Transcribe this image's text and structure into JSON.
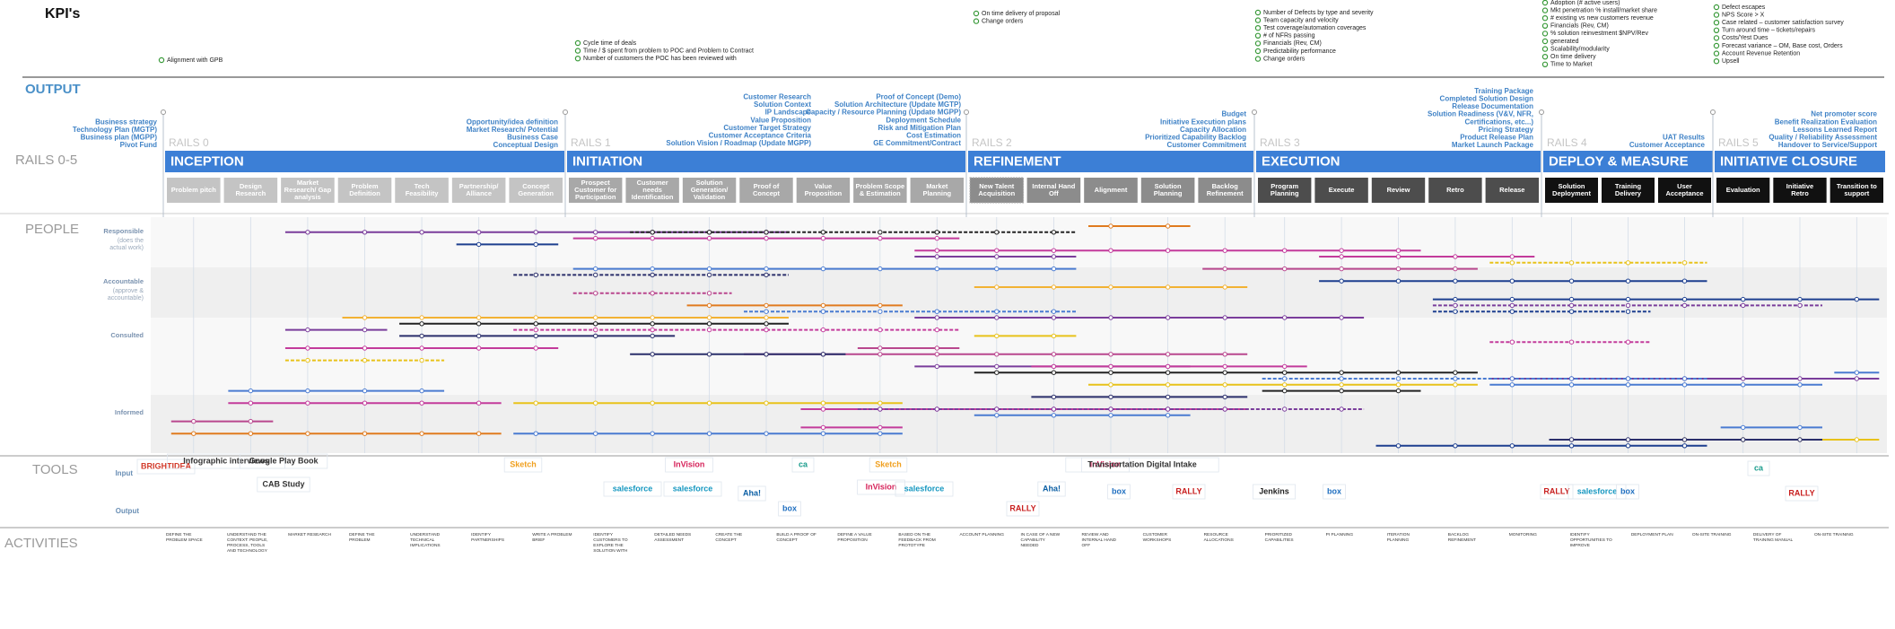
{
  "header": {
    "title": "KPI's"
  },
  "kpis": [
    {
      "items": [
        "Alignment with GPB"
      ]
    },
    {
      "items": [
        "Cycle time of deals",
        "Time / $ spent from  problem to POC and Problem to Contract",
        "Number of customers the POC has been reviewed with"
      ]
    },
    {
      "items": [
        "On time delivery of proposal",
        "Change orders"
      ]
    },
    {
      "items": [
        "Number of Defects by type and severity",
        "Team capacity and velocity",
        "Test coverage/automation coverages",
        "# of NFRs passing",
        "Financials (Rev, CM)",
        "Predictability performance",
        "Change orders"
      ]
    },
    {
      "items": [
        "Adoption (# active users)",
        "Mkt penetration % install/market share",
        "# existing vs new customers revenue",
        "Financials (Rev, CM)",
        "% solution reinvestment $NPV/Rev",
        "generated",
        "Scalability/modularity",
        "On time delivery",
        "Time to Market"
      ]
    },
    {
      "items": [
        "Defect escapes",
        "NPS Score > X",
        "Case related – customer satisfaction survey",
        "Turn around time – tickets/repairs",
        "Costs/Yest Dues",
        "Forecast variance – OM, Base cost, Orders",
        "Account Revenue Retention",
        "Upsell"
      ]
    }
  ],
  "sections": {
    "output": "OUTPUT",
    "rails": "RAILS 0-5",
    "people": "PEOPLE",
    "tools": "TOOLS",
    "activities": "ACTIVITIES"
  },
  "outputs": [
    {
      "items": [
        "Business strategy",
        "Technology Plan (MGTP)",
        "Business plan (MGPP)",
        "Pivot Fund"
      ]
    },
    {
      "items": [
        "Opportunity/idea definition",
        "Market Research/ Potential",
        "Business Case",
        "Conceptual Design"
      ]
    },
    {
      "items": [
        "Customer Research",
        "Solution Context",
        "IP Landscape",
        "Value Proposition",
        "Customer Target Strategy",
        "Customer Acceptance Criteria",
        "Solution Vision / Roadmap (Update MGPP)"
      ]
    },
    {
      "items": [
        "Proof of Concept (Demo)",
        "Solution Architecture (Update MGTP)",
        "Capacity / Resource Planning (Update MGPP)",
        "Deployment Schedule",
        "Risk and Mitigation Plan",
        "Cost Estimation",
        "GE Commitment/Contract"
      ]
    },
    {
      "items": [
        "Budget",
        "Initiative Execution plans",
        "Capacity Allocation",
        "Prioritized Capability Backlog",
        "Customer Commitment"
      ]
    },
    {
      "items": [
        "Training Package",
        "Completed Solution Design",
        "Release Documentation",
        "Solution Readiness (V&V, NFR,",
        "Certifications, etc...)",
        "Pricing Strategy",
        "Product Release Plan",
        "Market Launch Package"
      ]
    },
    {
      "items": [
        "UAT Results",
        "Customer Acceptance"
      ]
    },
    {
      "items": [
        "Net promoter score",
        "Benefit Realization Evaluation",
        "Lessons Learned Report",
        "Quality / Reliability Assessment",
        "Handover to Service/Support"
      ]
    }
  ],
  "rails": [
    {
      "label": "RAILS 0",
      "title": "INCEPTION",
      "steps": [
        "Problem pitch",
        "Design Research",
        "Market Research/ Gap analysis",
        "Problem Definition",
        "Tech Feasibility",
        "Partnership/ Alliance",
        "Concept Generation"
      ]
    },
    {
      "label": "RAILS 1",
      "title": "INITIATION",
      "steps": [
        "Prospect Customer for Participation",
        "Customer needs Identification",
        "Solution Generation/ Validation",
        "Proof of Concept",
        "Value Proposition",
        "Problem Scope & Estimation",
        "Market Planning"
      ]
    },
    {
      "label": "RAILS 2",
      "title": "REFINEMENT",
      "steps": [
        "New Talent Acquisition",
        "Internal Hand Off",
        "Alignment",
        "Solution Planning",
        "Backlog Refinement"
      ]
    },
    {
      "label": "RAILS 3",
      "title": "EXECUTION",
      "steps": [
        "Program Planning",
        "Execute",
        "Review",
        "Retro",
        "Release"
      ]
    },
    {
      "label": "RAILS 4",
      "title": "DEPLOY & MEASURE",
      "steps": [
        "Solution Deployment",
        "Training Delivery",
        "User Acceptance"
      ]
    },
    {
      "label": "RAILS 5",
      "title": "INITIATIVE CLOSURE",
      "steps": [
        "Evaluation",
        "Initiative Retro",
        "Transition to support"
      ]
    }
  ],
  "people": {
    "roles": [
      {
        "name": "Responsible",
        "note": "(does the actual work)"
      },
      {
        "name": "Accountable",
        "note": "(approve & accountable)"
      },
      {
        "name": "Consulted",
        "note": null
      },
      {
        "name": "Informed",
        "note": null
      }
    ]
  },
  "tools": {
    "input_label": "Input",
    "output_label": "Output",
    "input": [
      "BRIGHTIDEA",
      "Infographic interviews",
      "Google Play Book",
      "CAB Study",
      "Sketch",
      "InVision",
      "ca",
      "Sketch",
      "InVision",
      "Transportation Digital Intake",
      "salesforce",
      "salesforce",
      "Aha!",
      "InVision",
      "salesforce",
      "Aha!",
      "box",
      "RALLY",
      "Jenkins",
      "box",
      "RALLY",
      "salesforce",
      "box",
      "ca",
      "RALLY"
    ],
    "output": [
      "box",
      "RALLY"
    ]
  },
  "activities": [
    "DEFINE THE PROBLEM SPACE",
    "UNDERSTAND THE CONTEXT: PEOPLE, PROCESS, TOOLS AND TECHNOLOGY",
    "MARKET RESEARCH",
    "DEFINE THE PROBLEM",
    "UNDERSTAND TECHNICAL IMPLICATIONS",
    "IDENTIFY PARTNERSHIPS",
    "WRITE A PROBLEM BRIEF",
    "IDENTIFY CUSTOMERS TO EXPLORE THE SOLUTION WITH",
    "DETAILED NEEDS ASSESSMENT",
    "CREATE THE CONCEPT",
    "BUILD A PROOF OF CONCEPT",
    "DEFINE A VALUE PROPOSITION",
    "BASED ON THE FEEDBACK FROM PROTOTYPE",
    "ACCOUNT PLANNING",
    "IN CASE OF A NEW CAPABILITY NEEDED",
    "REVIEW AND INTERNAL HAND OFF",
    "CUSTOMER WORKSHOPS",
    "RESOURCE ALLOCATIONS",
    "PRIORITIZED CAPABILITIES",
    "PI PLANNING",
    "ITERATION PLANNING",
    "BACKLOG REFINEMENT",
    "MONITORING",
    "IDENTIFY OPPORTUNITIES TO IMPROVE",
    "DEPLOYMENT PLAN",
    "ON-SITE TRAINING",
    "DELIVERY OF TRAINING MANUAL",
    "ON-SITE TRAINING"
  ]
}
